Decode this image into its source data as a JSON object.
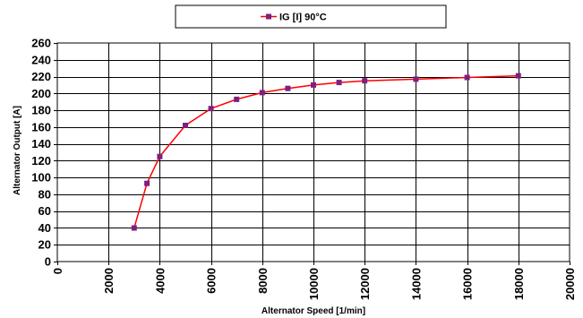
{
  "chart_data": {
    "type": "line",
    "title": "",
    "xlabel": "Alternator Speed [1/min]",
    "ylabel": "Alternator Output [A]",
    "xlim": [
      0,
      20000
    ],
    "ylim": [
      0,
      260
    ],
    "x_ticks": [
      "0",
      "2000",
      "4000",
      "6000",
      "8000",
      "10000",
      "12000",
      "14000",
      "16000",
      "18000",
      "20000"
    ],
    "y_ticks": [
      "0",
      "20",
      "40",
      "60",
      "80",
      "100",
      "120",
      "140",
      "160",
      "180",
      "200",
      "220",
      "240",
      "260"
    ],
    "grid": true,
    "legend_position": "top-center",
    "series": [
      {
        "name": "IG [I] 90°C",
        "line_color": "#ff0000",
        "marker_color": "#7f1f7f",
        "x": [
          3000,
          3500,
          4000,
          5000,
          6000,
          7000,
          8000,
          9000,
          10000,
          11000,
          12000,
          14000,
          16000,
          18000
        ],
        "y": [
          40,
          93,
          125,
          162,
          182,
          193,
          201,
          206,
          210,
          213,
          215,
          217,
          219,
          221
        ]
      }
    ]
  }
}
